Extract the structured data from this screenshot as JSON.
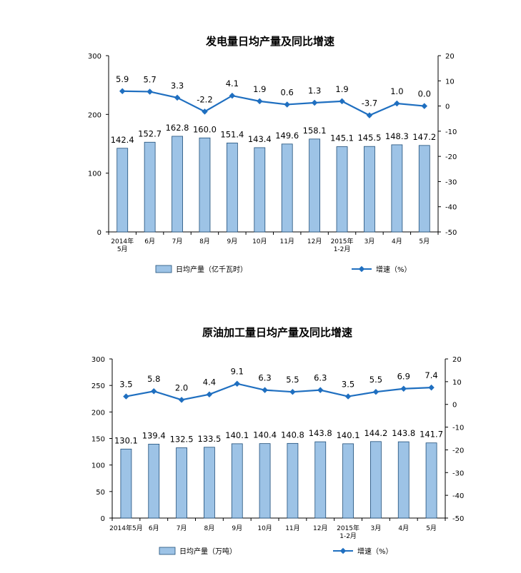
{
  "chart_data": [
    {
      "type": "bar",
      "title": "发电量日均产量及同比增速",
      "categories": [
        [
          "2014年",
          "5月"
        ],
        [
          "6月"
        ],
        [
          "7月"
        ],
        [
          "8月"
        ],
        [
          "9月"
        ],
        [
          "10月"
        ],
        [
          "11月"
        ],
        [
          "12月"
        ],
        [
          "2015年",
          "1-2月"
        ],
        [
          "3月"
        ],
        [
          "4月"
        ],
        [
          "5月"
        ]
      ],
      "series": [
        {
          "name": "日均产量（亿千瓦时）",
          "type": "bar",
          "axis": "left",
          "values": [
            142.4,
            152.7,
            162.8,
            160.0,
            151.4,
            143.4,
            149.6,
            158.1,
            145.1,
            145.5,
            148.3,
            147.2
          ],
          "labels": [
            "142.4",
            "152.7",
            "162.8",
            "160.0",
            "151.4",
            "143.4",
            "149.6",
            "158.1",
            "145.1",
            "145.5",
            "148.3",
            "147.2"
          ]
        },
        {
          "name": "增速（%）",
          "type": "line",
          "axis": "right",
          "values": [
            5.9,
            5.7,
            3.3,
            -2.2,
            4.1,
            1.9,
            0.6,
            1.3,
            1.9,
            -3.7,
            1.0,
            0.0
          ],
          "labels": [
            "5.9",
            "5.7",
            "3.3",
            "-2.2",
            "4.1",
            "1.9",
            "0.6",
            "1.3",
            "1.9",
            "-3.7",
            "1.0",
            "0.0"
          ]
        }
      ],
      "y_left": {
        "min": 0,
        "max": 300,
        "ticks": [
          0,
          100,
          200,
          300
        ]
      },
      "y_right": {
        "min": -50,
        "max": 20,
        "ticks": [
          20,
          10,
          0,
          -10,
          -20,
          -30,
          -40,
          -50
        ]
      },
      "colors": {
        "bar_fill": "#9DC3E6",
        "bar_stroke": "#1F4E79",
        "line": "#1F6FC0",
        "axis": "#000000"
      },
      "legend": "bottom",
      "grid": false
    },
    {
      "type": "bar",
      "title": "原油加工量日均产量及同比增速",
      "categories": [
        [
          "2014年5月"
        ],
        [
          "6月"
        ],
        [
          "7月"
        ],
        [
          "8月"
        ],
        [
          "9月"
        ],
        [
          "10月"
        ],
        [
          "11月"
        ],
        [
          "12月"
        ],
        [
          "2015年",
          "1-2月"
        ],
        [
          "3月"
        ],
        [
          "4月"
        ],
        [
          "5月"
        ]
      ],
      "series": [
        {
          "name": "日均产量（万吨）",
          "type": "bar",
          "axis": "left",
          "values": [
            130.1,
            139.4,
            132.5,
            133.5,
            140.1,
            140.4,
            140.8,
            143.8,
            140.1,
            144.2,
            143.8,
            141.7
          ],
          "labels": [
            "130.1",
            "139.4",
            "132.5",
            "133.5",
            "140.1",
            "140.4",
            "140.8",
            "143.8",
            "140.1",
            "144.2",
            "143.8",
            "141.7"
          ]
        },
        {
          "name": "增速（%）",
          "type": "line",
          "axis": "right",
          "values": [
            3.5,
            5.8,
            2.0,
            4.4,
            9.1,
            6.3,
            5.5,
            6.3,
            3.5,
            5.5,
            6.9,
            7.4
          ],
          "labels": [
            "3.5",
            "5.8",
            "2.0",
            "4.4",
            "9.1",
            "6.3",
            "5.5",
            "6.3",
            "3.5",
            "5.5",
            "6.9",
            "7.4"
          ]
        }
      ],
      "y_left": {
        "min": 0,
        "max": 300,
        "ticks": [
          0,
          50,
          100,
          150,
          200,
          250,
          300
        ]
      },
      "y_right": {
        "min": -50,
        "max": 20,
        "ticks": [
          20,
          10,
          0,
          -10,
          -20,
          -30,
          -40,
          -50
        ]
      },
      "colors": {
        "bar_fill": "#9DC3E6",
        "bar_stroke": "#1F4E79",
        "line": "#1F6FC0",
        "axis": "#000000"
      },
      "legend": "bottom",
      "grid": false
    }
  ]
}
